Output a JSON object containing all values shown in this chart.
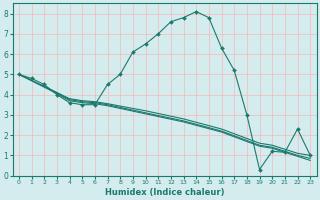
{
  "xlabel": "Humidex (Indice chaleur)",
  "xlim": [
    -0.5,
    23.5
  ],
  "ylim": [
    0,
    8.5
  ],
  "xticks": [
    0,
    1,
    2,
    3,
    4,
    5,
    6,
    7,
    8,
    9,
    10,
    11,
    12,
    13,
    14,
    15,
    16,
    17,
    18,
    19,
    20,
    21,
    22,
    23
  ],
  "yticks": [
    0,
    1,
    2,
    3,
    4,
    5,
    6,
    7,
    8
  ],
  "bg_color": "#d4eced",
  "line_color": "#1a7a6e",
  "grid_color": "#f5b8b8",
  "lines": [
    {
      "x": [
        0,
        1,
        2,
        3,
        4,
        5,
        6,
        7,
        8,
        9,
        10,
        11,
        12,
        13,
        14,
        15,
        16,
        17,
        18,
        19,
        20,
        21,
        22,
        23
      ],
      "y": [
        5,
        4.8,
        4.5,
        4.0,
        3.6,
        3.5,
        3.5,
        4.5,
        5.0,
        6.1,
        6.5,
        7.0,
        7.6,
        7.8,
        8.1,
        7.8,
        6.3,
        5.2,
        3.0,
        0.3,
        1.2,
        1.15,
        2.3,
        1.0
      ],
      "has_markers": true
    },
    {
      "x": [
        0,
        3,
        4,
        5,
        6,
        7,
        10,
        13,
        16,
        19,
        20,
        21,
        22,
        23
      ],
      "y": [
        5,
        4.1,
        3.8,
        3.7,
        3.65,
        3.55,
        3.2,
        2.8,
        2.3,
        1.6,
        1.5,
        1.3,
        1.1,
        1.0
      ],
      "has_markers": false
    },
    {
      "x": [
        0,
        3,
        4,
        5,
        6,
        7,
        10,
        13,
        16,
        19,
        20,
        21,
        22,
        23
      ],
      "y": [
        5,
        4.1,
        3.75,
        3.65,
        3.6,
        3.5,
        3.1,
        2.7,
        2.2,
        1.5,
        1.4,
        1.2,
        1.0,
        0.85
      ],
      "has_markers": false
    },
    {
      "x": [
        0,
        3,
        4,
        5,
        6,
        7,
        10,
        13,
        16,
        19,
        20,
        21,
        22,
        23
      ],
      "y": [
        5,
        4.05,
        3.7,
        3.6,
        3.55,
        3.45,
        3.05,
        2.65,
        2.15,
        1.45,
        1.35,
        1.15,
        0.95,
        0.75
      ],
      "has_markers": false
    }
  ]
}
